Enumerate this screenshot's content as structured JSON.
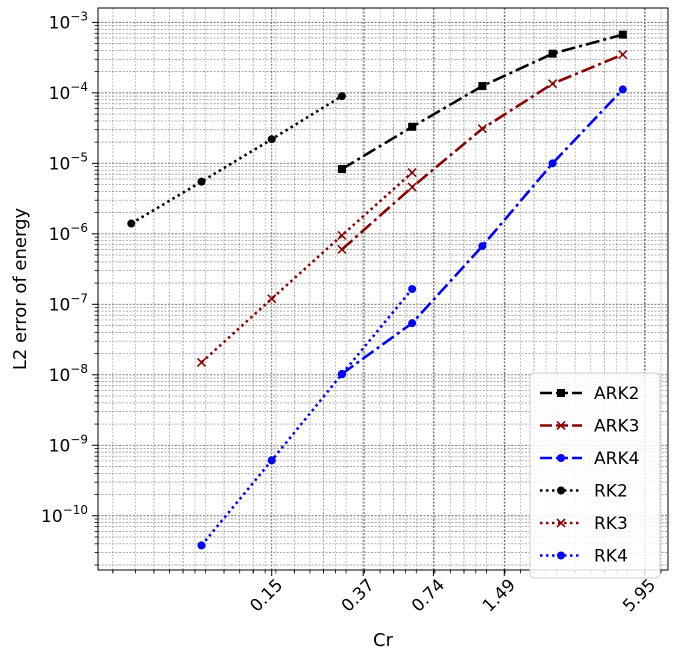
{
  "chart_data": {
    "type": "line",
    "title": "",
    "xlabel": "Cr",
    "ylabel": "L2 error of energy",
    "xscale": "log2",
    "yscale": "log10",
    "xlim": [
      0.027,
      7.5
    ],
    "ylim": [
      1.7e-11,
      0.0016
    ],
    "grid": "major and minor, dotted gray",
    "legend_position": "bottom-right",
    "x_tick_labels": [
      "0.15",
      "0.37",
      "0.74",
      "1.49",
      "5.95"
    ],
    "x_ticks": [
      0.15,
      0.37,
      0.74,
      1.49,
      5.95
    ],
    "y_tick_labels": [
      {
        "base": "10",
        "exp": "-10",
        "value": 1e-10
      },
      {
        "base": "10",
        "exp": "-9",
        "value": 1e-09
      },
      {
        "base": "10",
        "exp": "-8",
        "value": 1e-08
      },
      {
        "base": "10",
        "exp": "-7",
        "value": 1e-07
      },
      {
        "base": "10",
        "exp": "-6",
        "value": 1e-06
      },
      {
        "base": "10",
        "exp": "-5",
        "value": 1e-05
      },
      {
        "base": "10",
        "exp": "-4",
        "value": 0.0001
      },
      {
        "base": "10",
        "exp": "-3",
        "value": 0.001
      }
    ],
    "series": [
      {
        "name": "ARK2",
        "color": "#000000",
        "line": "dashdot",
        "marker": "square",
        "x": [
          0.3,
          0.6,
          1.2,
          2.4,
          4.8
        ],
        "y": [
          8.3e-06,
          3.3e-05,
          0.000125,
          0.00036,
          0.00067
        ]
      },
      {
        "name": "ARK3",
        "color": "#8b0000",
        "line": "dashdot",
        "marker": "x",
        "x": [
          0.3,
          0.6,
          1.2,
          2.4,
          4.8
        ],
        "y": [
          6e-07,
          4.6e-06,
          3.1e-05,
          0.000135,
          0.00035
        ]
      },
      {
        "name": "ARK4",
        "color": "#0000ff",
        "line": "dashdot",
        "marker": "circle",
        "x": [
          0.3,
          0.6,
          1.2,
          2.4,
          4.8
        ],
        "y": [
          1.03e-08,
          5.4e-08,
          6.7e-07,
          1e-05,
          0.000112
        ]
      },
      {
        "name": "RK2",
        "color": "#000000",
        "line": "dotted",
        "marker": "circle",
        "x": [
          0.0375,
          0.075,
          0.15,
          0.3,
          0.6
        ],
        "y": [
          1.4e-06,
          5.5e-06,
          2.2e-05,
          9e-05,
          null
        ]
      },
      {
        "name": "RK3",
        "color": "#8b0000",
        "line": "dotted",
        "marker": "x",
        "x": [
          0.075,
          0.15,
          0.3,
          0.6
        ],
        "y": [
          1.5e-08,
          1.2e-07,
          9.5e-07,
          7.4e-06
        ]
      },
      {
        "name": "RK4",
        "color": "#0000ff",
        "line": "dotted",
        "marker": "circle",
        "x": [
          0.075,
          0.15,
          0.3,
          0.6
        ],
        "y": [
          3.8e-11,
          6.1e-10,
          1.02e-08,
          1.65e-07
        ]
      }
    ]
  }
}
